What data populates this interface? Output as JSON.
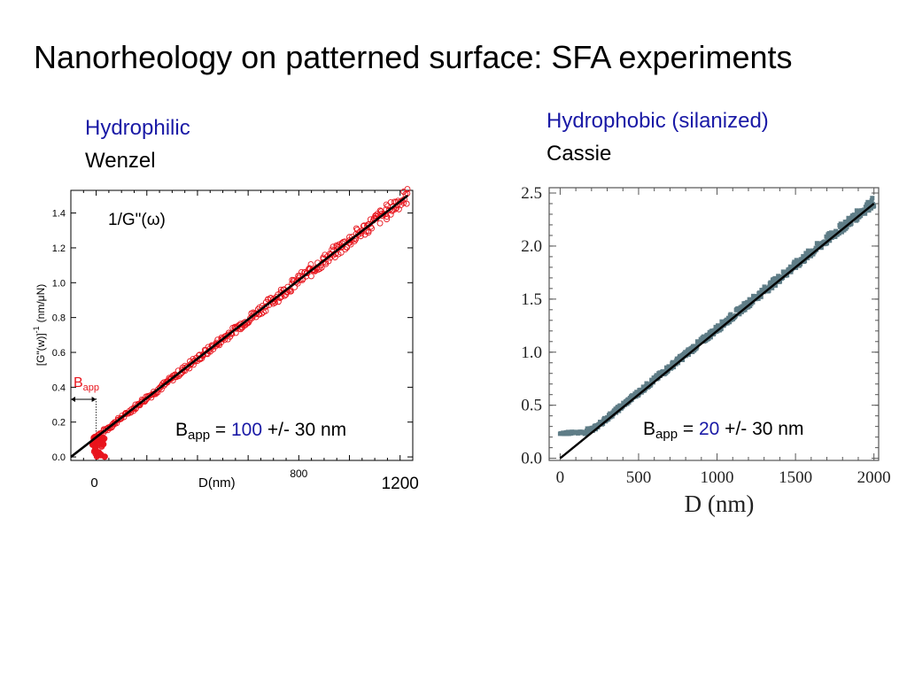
{
  "slide": {
    "title": "Nanorheology on patterned surface: SFA experiments"
  },
  "left_panel": {
    "heading": "Hydrophilic",
    "subheading": "Wenzel"
  },
  "right_panel": {
    "heading": "Hydrophobic (silanized)",
    "subheading": "Cassie"
  },
  "colors": {
    "left_data": "#e8141c",
    "right_data": "#5f7d87",
    "fit_line": "#000000",
    "heading_blue": "#1a1aa6"
  },
  "chart_data": [
    {
      "type": "scatter",
      "name": "hydrophilic",
      "annotation": "1/G\"(ω)",
      "ylabel": "[G\"(w)]^-1 (nm/μN)",
      "ylabel_main": "[G\"(w)]",
      "ylabel_sup": "-1",
      "ylabel_unit": "(nm/μN)",
      "xlabel": "D(nm)",
      "x_ticklabels": [
        "0",
        "800",
        "1200"
      ],
      "y_ticks": [
        0.0,
        0.2,
        0.4,
        0.6,
        0.8,
        1.0,
        1.2,
        1.4
      ],
      "y_ticklabels": [
        "0.0",
        "0.2",
        "0.4",
        "0.6",
        "0.8",
        "1.0",
        "1.2",
        "1.4"
      ],
      "xlim": [
        -100,
        1250
      ],
      "ylim": [
        -0.02,
        1.53
      ],
      "marker": "open-circle",
      "fit": {
        "x": [
          -100,
          1230
        ],
        "y": [
          0.0,
          1.5
        ]
      },
      "points": {
        "x_range": [
          -10,
          1230
        ],
        "y_range": [
          0.08,
          1.5
        ],
        "noise": 0.03
      },
      "near_zero_cluster": {
        "x_range": [
          -15,
          35
        ],
        "y_range": [
          0.0,
          0.12
        ]
      },
      "bapp_marker": {
        "label_main": "B",
        "label_sub": "app",
        "x_range": [
          -100,
          0
        ]
      },
      "bapp_text": {
        "main": "B",
        "sub": "app",
        "eq": " = ",
        "value": "100",
        "err": " +/- 30 nm"
      }
    },
    {
      "type": "scatter",
      "name": "hydrophobic",
      "xlabel": "D  (nm)",
      "x_ticks": [
        0,
        500,
        1000,
        1500,
        2000
      ],
      "x_ticklabels": [
        "0",
        "500",
        "1000",
        "1500",
        "2000"
      ],
      "y_ticks": [
        0.0,
        0.5,
        1.0,
        1.5,
        2.0,
        2.5
      ],
      "y_ticklabels": [
        "0.0",
        "0.5",
        "1.0",
        "1.5",
        "2.0",
        "2.5"
      ],
      "xlim": [
        -70,
        2030
      ],
      "ylim": [
        -0.02,
        2.55
      ],
      "marker": "filled-square",
      "fit": {
        "x": [
          0,
          2000
        ],
        "y": [
          0.0,
          2.4
        ]
      },
      "plateau": {
        "x_range": [
          0,
          170
        ],
        "y": 0.24
      },
      "points": {
        "x_range": [
          170,
          2000
        ],
        "y_range": [
          0.25,
          2.45
        ],
        "noise": 0.03
      },
      "bapp_text": {
        "main": "B",
        "sub": "app",
        "eq": " = ",
        "value": "20",
        "err": " +/- 30 nm"
      }
    }
  ]
}
